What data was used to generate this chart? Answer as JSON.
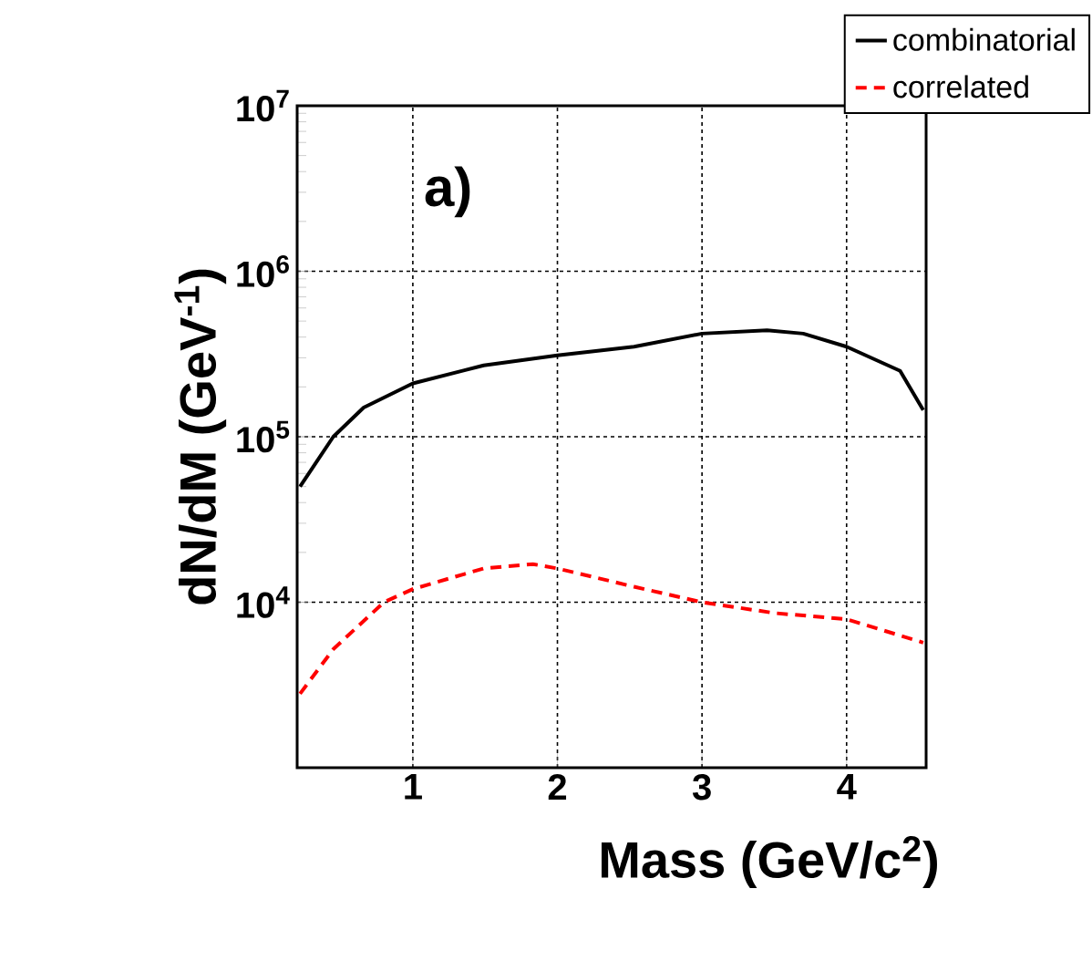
{
  "chart_data": {
    "type": "line",
    "xlabel": "Mass (GeV/c$^{2}$)",
    "ylabel": "dN/dM (GeV$^{-1}$)",
    "annotations": [
      "a)"
    ],
    "log": "y",
    "grid": true,
    "legend": "top right",
    "marker": "none",
    "xlim": [
      0.2,
      4.55
    ],
    "ylim": [
      1000,
      10000000
    ],
    "xticks": [
      1,
      2,
      3,
      4
    ],
    "yticks": [
      {
        "value": 10000,
        "label": "10$^{4}$"
      },
      {
        "value": 100000,
        "label": "10$^{5}$"
      },
      {
        "value": 1000000,
        "label": "10$^{6}$"
      },
      {
        "value": 10000000,
        "label": "10$^{7}$"
      }
    ],
    "x": [
      0.22,
      0.45,
      0.66,
      0.8,
      1.0,
      1.49,
      1.83,
      2.0,
      2.53,
      3.0,
      3.45,
      3.5,
      3.7,
      4.0,
      4.37,
      4.53
    ],
    "series": [
      {
        "name": "combinatorial",
        "color": "#000000",
        "line_style": "solid",
        "values": [
          50000,
          100000,
          150000,
          null,
          210000,
          270000,
          null,
          310000,
          350000,
          420000,
          440000,
          null,
          420000,
          350000,
          250000,
          145000
        ]
      },
      {
        "name": "correlated",
        "color": "#ff0000",
        "line_style": "dashed",
        "values": [
          2800,
          5200,
          null,
          10000,
          12000,
          16000,
          17000,
          16000,
          12400,
          10000,
          null,
          8600,
          null,
          7900,
          null,
          5700
        ]
      }
    ]
  }
}
